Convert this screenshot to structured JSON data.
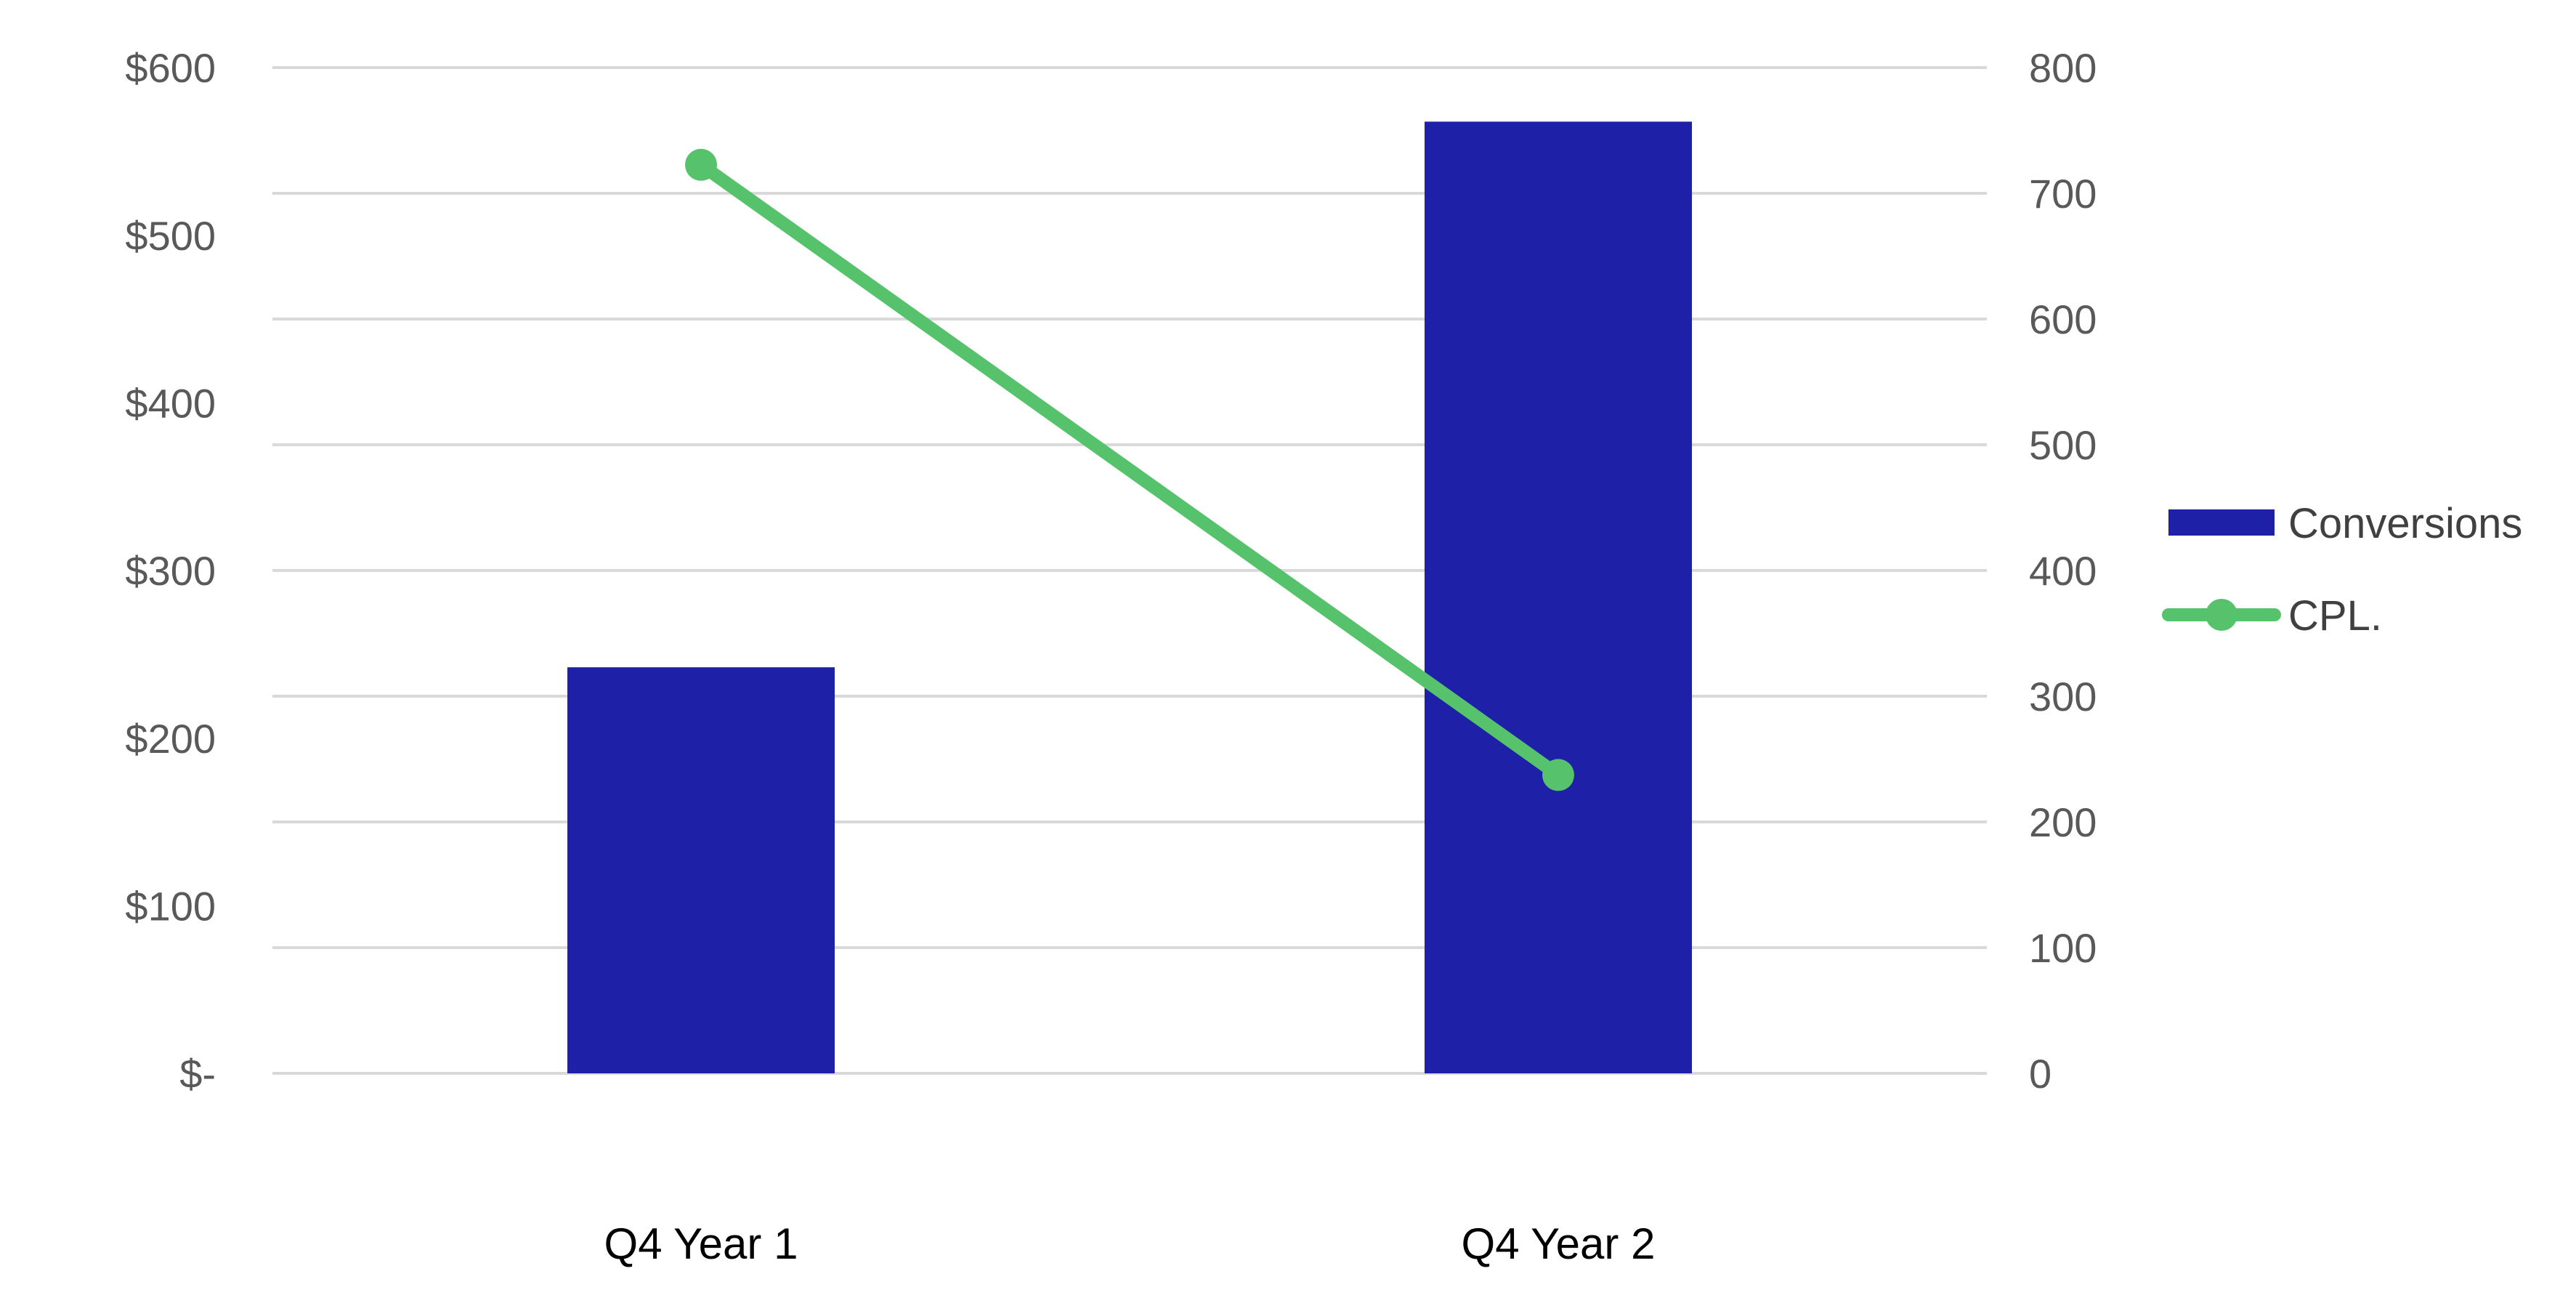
{
  "chart_data": {
    "type": "bar",
    "categories": [
      "Q4 Year 1",
      "Q4 Year 2"
    ],
    "series": [
      {
        "name": "Conversions",
        "type": "bar",
        "axis": "right",
        "values": [
          323,
          757
        ],
        "color": "#1e20a8"
      },
      {
        "name": "CPL.",
        "type": "line",
        "axis": "left",
        "values": [
          542,
          178
        ],
        "color": "#56c26b",
        "marker": "circle"
      }
    ],
    "y_left": {
      "ylim": [
        0,
        600
      ],
      "ticks": [
        0,
        100,
        200,
        300,
        400,
        500,
        600
      ],
      "tick_labels": [
        "$-",
        "$100",
        "$200",
        "$300",
        "$400",
        "$500",
        "$600"
      ]
    },
    "y_right": {
      "ylim": [
        0,
        800
      ],
      "ticks": [
        0,
        100,
        200,
        300,
        400,
        500,
        600,
        700,
        800
      ],
      "tick_labels": [
        "0",
        "100",
        "200",
        "300",
        "400",
        "500",
        "600",
        "700",
        "800"
      ]
    },
    "grid": true,
    "grid_color": "#d9d9d9",
    "title": "",
    "xlabel": "",
    "ylabel": "",
    "legend": {
      "position": "right",
      "entries": [
        "Conversions",
        "CPL."
      ]
    }
  }
}
